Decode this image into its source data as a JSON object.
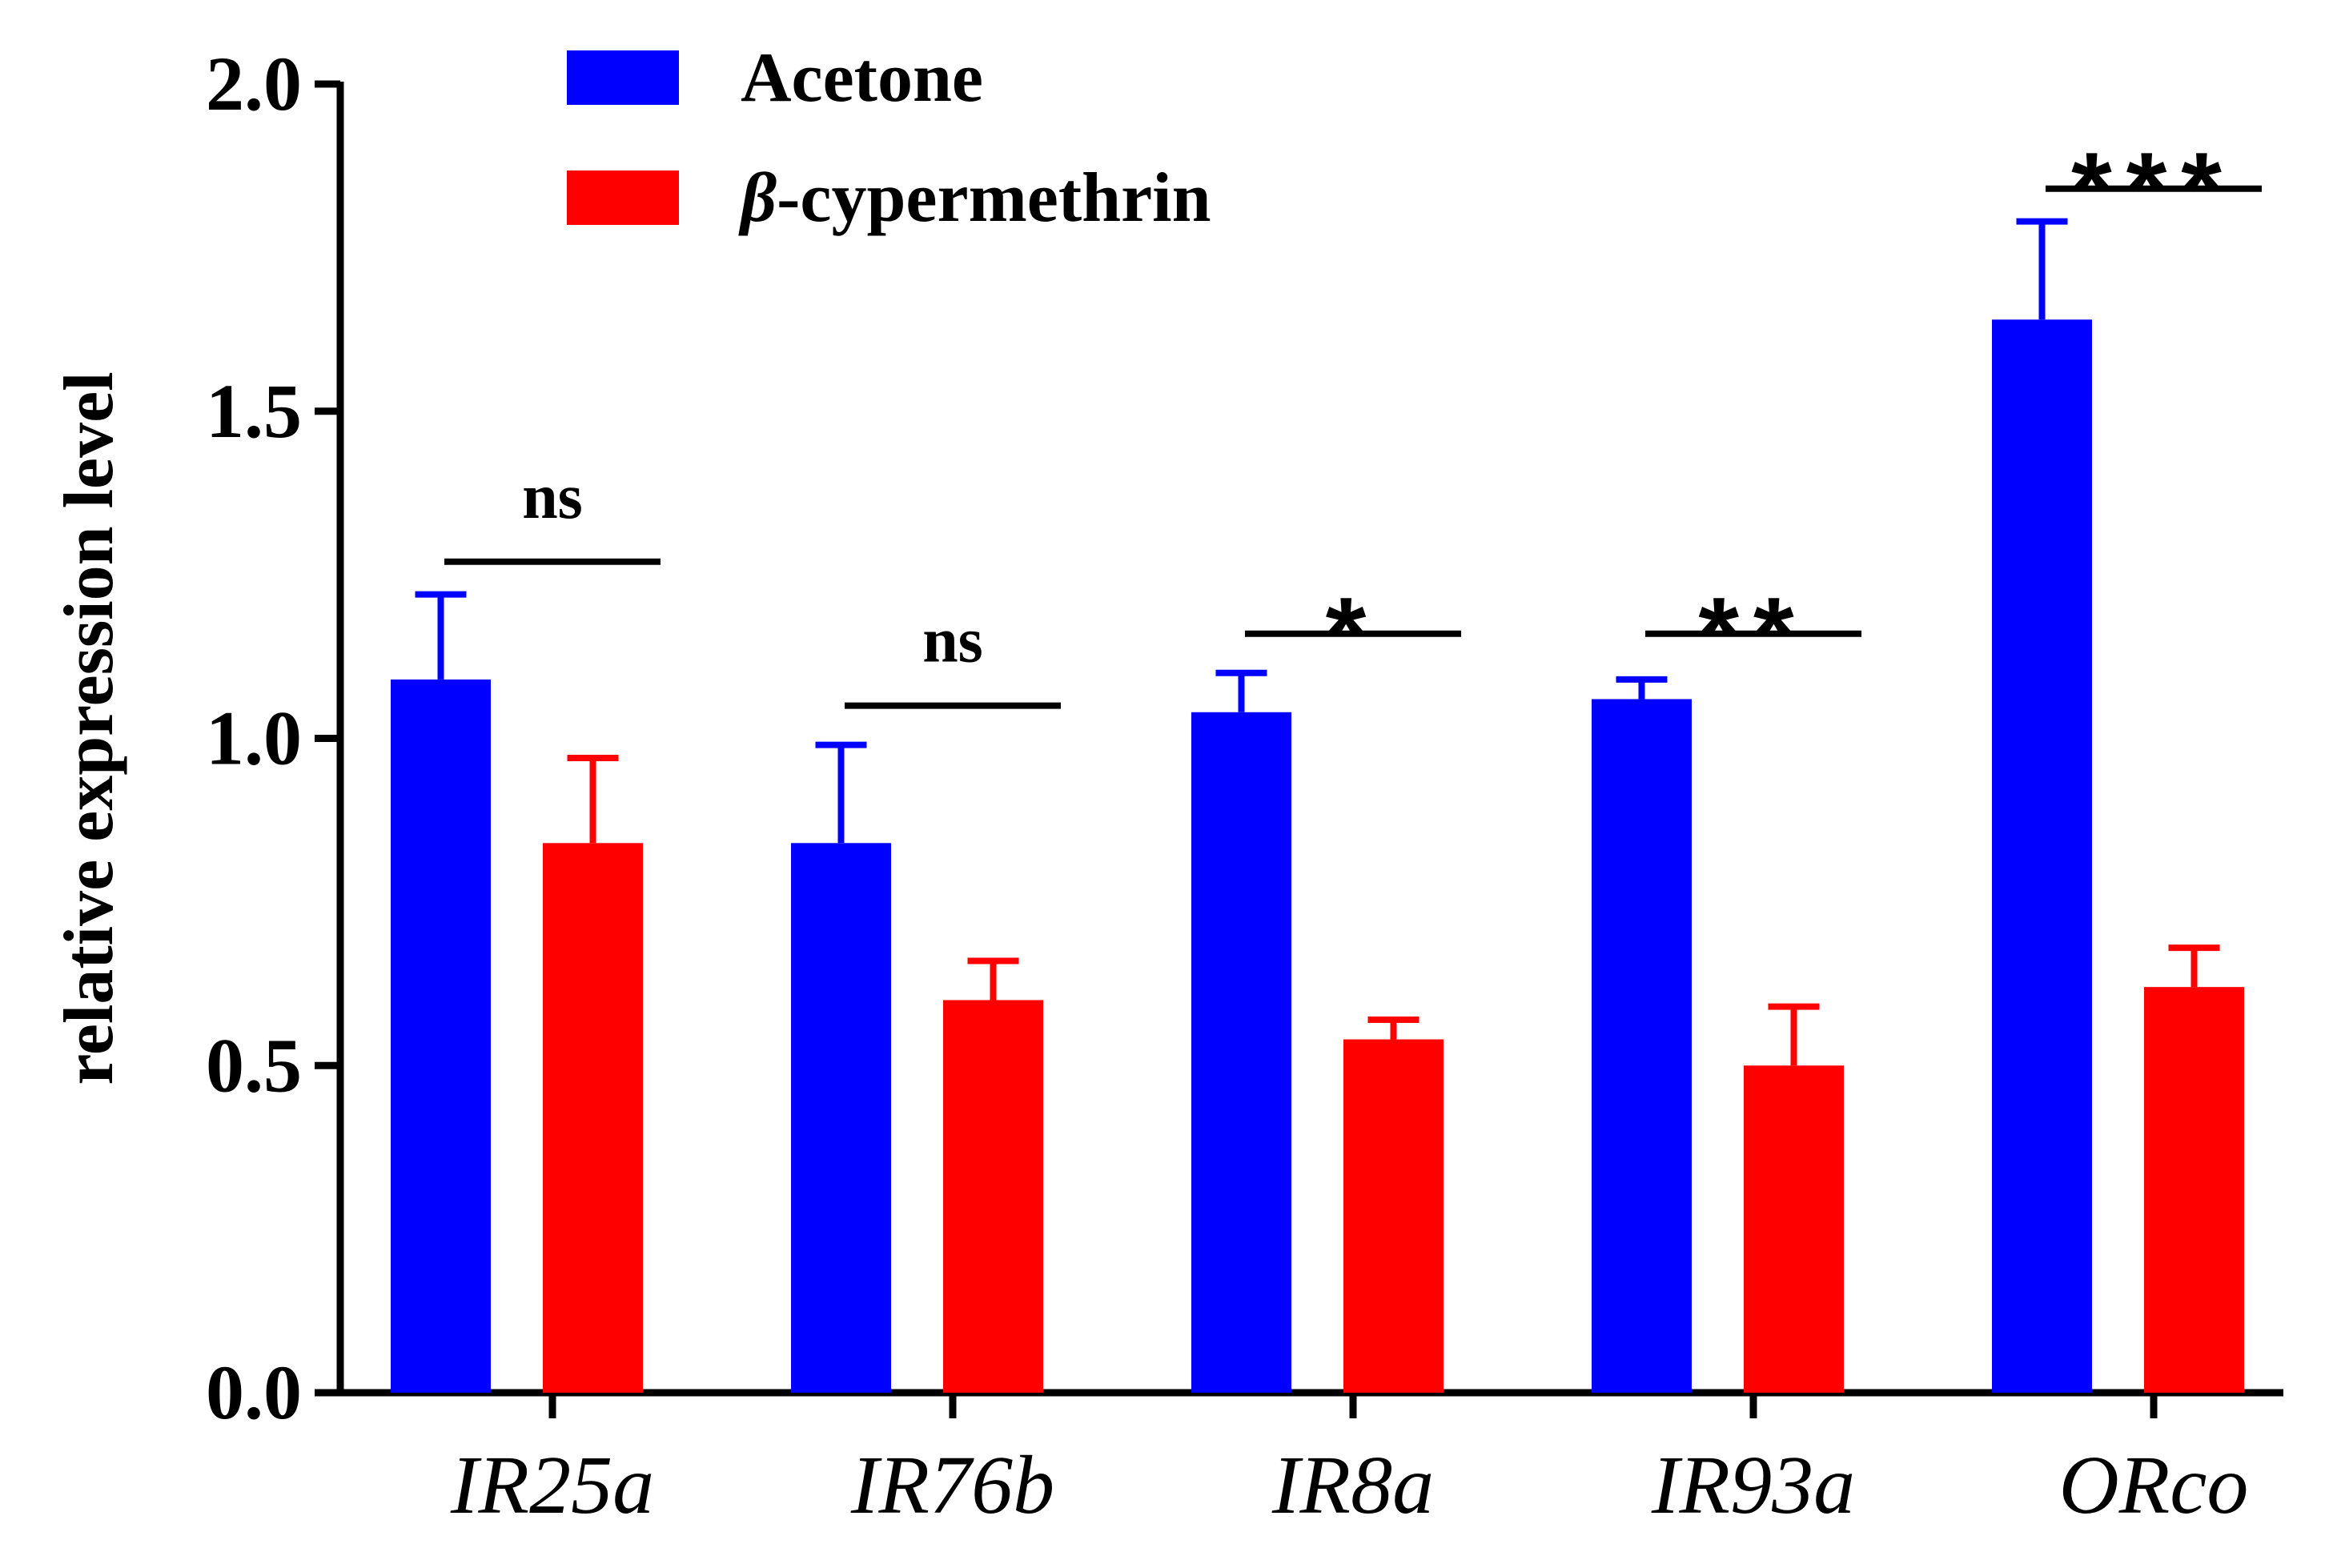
{
  "chart_data": {
    "type": "bar",
    "title": "",
    "xlabel": "",
    "ylabel": "relative expression level",
    "ylim": [
      0,
      2.0
    ],
    "yticks": [
      "0.0",
      "0.5",
      "1.0",
      "1.5",
      "2.0"
    ],
    "ytick_values": [
      0,
      0.5,
      1.0,
      1.5,
      2.0
    ],
    "categories": [
      "IR25a",
      "IR76b",
      "IR8a",
      "IR93a",
      "ORco"
    ],
    "series": [
      {
        "name": "Acetone",
        "color": "#0000ff",
        "values": [
          1.09,
          0.84,
          1.04,
          1.06,
          1.64
        ],
        "errors": [
          0.13,
          0.15,
          0.06,
          0.03,
          0.15
        ]
      },
      {
        "name": "-cypermethrin",
        "name_prefix": "β",
        "color": "#ff0000",
        "values": [
          0.84,
          0.6,
          0.54,
          0.5,
          0.62
        ],
        "errors": [
          0.13,
          0.06,
          0.03,
          0.09,
          0.06
        ]
      }
    ],
    "significance": [
      {
        "category": "IR25a",
        "label": "ns",
        "line_at": 1.27
      },
      {
        "category": "IR76b",
        "label": "ns",
        "line_at": 1.05
      },
      {
        "category": "IR8a",
        "label": "*",
        "line_at": 1.16
      },
      {
        "category": "IR93a",
        "label": "**",
        "line_at": 1.16
      },
      {
        "category": "ORco",
        "label": "***",
        "line_at": 1.84
      }
    ],
    "legend_position": "top-left",
    "grid": false
  }
}
